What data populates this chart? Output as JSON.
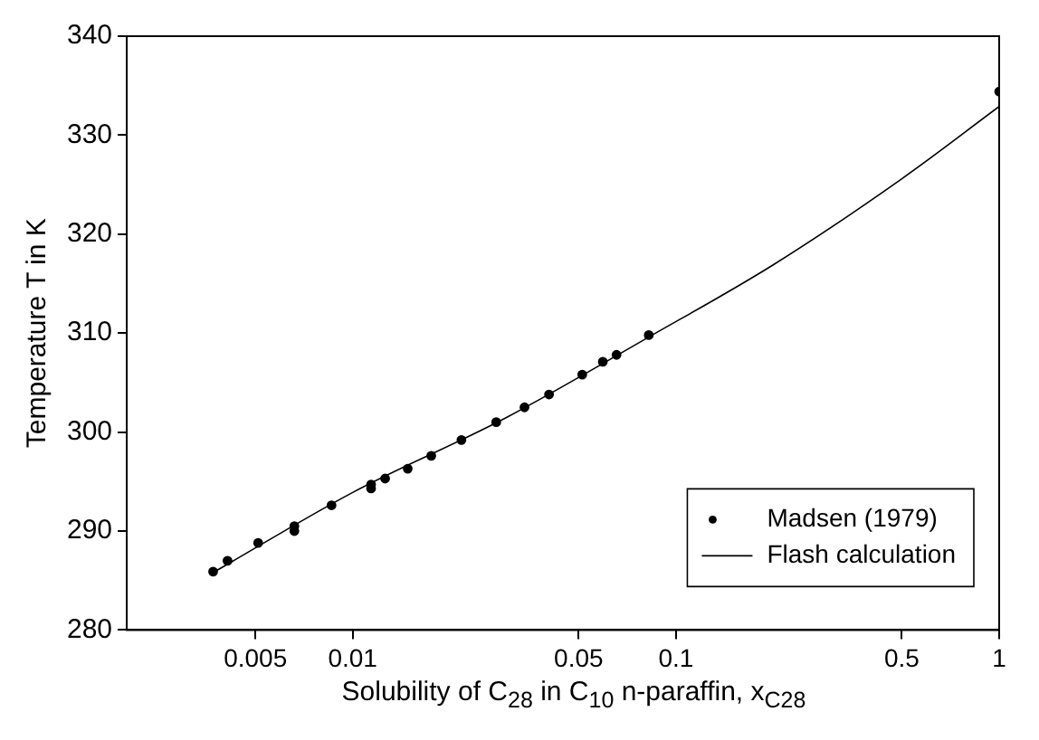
{
  "chart_data": {
    "type": "scatter",
    "xlabel": "Solubility of C$_{28}$ in C$_{10}$ n-paraffin, x$_{C28}$",
    "ylabel": "Temperature T in K",
    "log": "x",
    "xlim": [
      0.002,
      1
    ],
    "xticks": [
      0.005,
      0.01,
      0.05,
      0.1,
      0.5,
      1
    ],
    "ylim": [
      280,
      340
    ],
    "yticks": [
      280,
      290,
      300,
      310,
      320,
      330,
      340
    ],
    "grid": false,
    "legend": "bottom right",
    "series": [
      {
        "name": "Madsen (1979)",
        "type": "scatter",
        "marker": "circle",
        "color": "#000000",
        "x": [
          0.0037,
          0.0041,
          0.0051,
          0.0066,
          0.0066,
          0.0086,
          0.0114,
          0.0114,
          0.0126,
          0.0148,
          0.0175,
          0.0217,
          0.0278,
          0.034,
          0.0405,
          0.0513,
          0.0594,
          0.0655,
          0.0824,
          1
        ],
        "values": [
          285.9,
          287.0,
          288.8,
          290.5,
          290.0,
          292.6,
          294.7,
          294.3,
          295.3,
          296.3,
          297.6,
          299.2,
          301.0,
          302.5,
          303.8,
          305.8,
          307.1,
          307.8,
          309.8,
          334.4
        ]
      },
      {
        "name": "Flash calculation",
        "type": "line",
        "marker": "none",
        "line_style": "solid",
        "color": "#000000",
        "x": [
          0.0037,
          0.01,
          0.03,
          0.0824,
          0.2,
          0.5,
          1
        ],
        "values": [
          285.8,
          293.9,
          301.5,
          309.6,
          316.9,
          325.6,
          332.9
        ]
      }
    ]
  }
}
